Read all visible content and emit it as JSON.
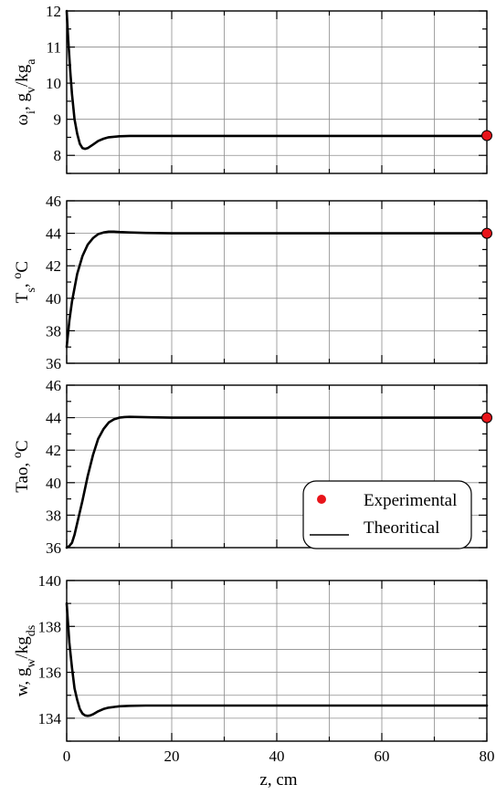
{
  "colors": {
    "experimental_marker": "#e8141a",
    "line": "#000000",
    "grid": "#8c8c8c"
  },
  "legend": {
    "experimental_label": "Experimental",
    "theoretical_label": "Theoritical",
    "placement": "inside-right of third panel"
  },
  "shared_xlabel": "z, cm",
  "chart_data": [
    {
      "type": "line",
      "ylabel_main": "ωi, gv/kga",
      "ylabel_parts": {
        "sym": "ω",
        "sub1": "i",
        "mid": ", g",
        "sub2": "v",
        "tail": "/kg",
        "sub3": "a"
      },
      "xlim": [
        0,
        80
      ],
      "ylim": [
        7.5,
        12
      ],
      "yticks": [
        "8",
        "9",
        "10",
        "11",
        "12"
      ],
      "xticks": [
        "0",
        "20",
        "40",
        "60",
        "80"
      ],
      "grid": true,
      "series": [
        {
          "name": "Theoritical",
          "x": [
            0,
            0.3,
            0.7,
            1,
            1.5,
            2,
            2.5,
            3,
            3.5,
            4,
            5,
            6,
            7,
            8,
            10,
            12,
            15,
            20,
            30,
            40,
            50,
            60,
            70,
            80
          ],
          "y": [
            12.0,
            11.2,
            10.3,
            9.7,
            9.0,
            8.6,
            8.32,
            8.2,
            8.18,
            8.2,
            8.3,
            8.4,
            8.46,
            8.5,
            8.53,
            8.54,
            8.54,
            8.54,
            8.54,
            8.54,
            8.54,
            8.54,
            8.54,
            8.54
          ]
        },
        {
          "name": "Experimental",
          "x": [
            80
          ],
          "y": [
            8.55
          ]
        }
      ]
    },
    {
      "type": "line",
      "ylabel_main": "Ts, oC",
      "ylabel_parts": {
        "sym": "T",
        "sub1": "s",
        "mid": ", ",
        "sup": "o",
        "tail": "C"
      },
      "xlim": [
        0,
        80
      ],
      "ylim": [
        36,
        46
      ],
      "yticks": [
        "36",
        "38",
        "40",
        "42",
        "44",
        "46"
      ],
      "xticks": [
        "0",
        "20",
        "40",
        "60",
        "80"
      ],
      "grid": true,
      "series": [
        {
          "name": "Theoritical",
          "x": [
            0,
            0.5,
            1,
            2,
            3,
            4,
            5,
            6,
            7,
            8,
            9,
            10,
            12,
            15,
            20,
            40,
            60,
            80
          ],
          "y": [
            37.0,
            38.6,
            39.8,
            41.5,
            42.6,
            43.3,
            43.7,
            43.95,
            44.05,
            44.1,
            44.1,
            44.08,
            44.05,
            44.02,
            44.0,
            44.0,
            44.0,
            44.0
          ]
        },
        {
          "name": "Experimental",
          "x": [
            80
          ],
          "y": [
            44.0
          ]
        }
      ]
    },
    {
      "type": "line",
      "ylabel_main": "Tao, oC",
      "ylabel_parts": {
        "sym": "Tao",
        "mid": ", ",
        "sup": "o",
        "tail": "C"
      },
      "xlim": [
        0,
        80
      ],
      "ylim": [
        36,
        46
      ],
      "yticks": [
        "36",
        "38",
        "40",
        "42",
        "44",
        "46"
      ],
      "xticks": [
        "0",
        "20",
        "40",
        "60",
        "80"
      ],
      "grid": true,
      "series": [
        {
          "name": "Theoritical",
          "x": [
            0,
            0.5,
            1,
            1.5,
            2,
            3,
            4,
            5,
            6,
            7,
            8,
            9,
            10,
            11,
            12,
            14,
            16,
            20,
            40,
            60,
            80
          ],
          "y": [
            36.0,
            36.1,
            36.3,
            36.8,
            37.5,
            38.9,
            40.4,
            41.7,
            42.7,
            43.3,
            43.7,
            43.9,
            44.0,
            44.04,
            44.05,
            44.04,
            44.02,
            44.0,
            44.0,
            44.0,
            44.0
          ]
        },
        {
          "name": "Experimental",
          "x": [
            80
          ],
          "y": [
            44.0
          ]
        }
      ]
    },
    {
      "type": "line",
      "ylabel_main": "w, gw/kgds",
      "ylabel_parts": {
        "sym": "w",
        "mid": ", g",
        "sub2": "w",
        "tail": "/kg",
        "sub3": "ds"
      },
      "xlim": [
        0,
        80
      ],
      "ylim": [
        133,
        140
      ],
      "yticks": [
        "134",
        "136",
        "138",
        "140"
      ],
      "xticks": [
        "0",
        "20",
        "40",
        "60",
        "80"
      ],
      "grid": true,
      "series": [
        {
          "name": "Theoritical",
          "x": [
            0,
            0.5,
            1,
            1.5,
            2,
            2.5,
            3,
            3.5,
            4,
            4.5,
            5,
            6,
            7,
            8,
            10,
            12,
            15,
            20,
            40,
            60,
            80
          ],
          "y": [
            139.0,
            137.3,
            136.2,
            135.3,
            134.8,
            134.4,
            134.2,
            134.12,
            134.1,
            134.12,
            134.17,
            134.3,
            134.4,
            134.46,
            134.52,
            134.54,
            134.55,
            134.55,
            134.55,
            134.55,
            134.55
          ]
        }
      ]
    }
  ]
}
